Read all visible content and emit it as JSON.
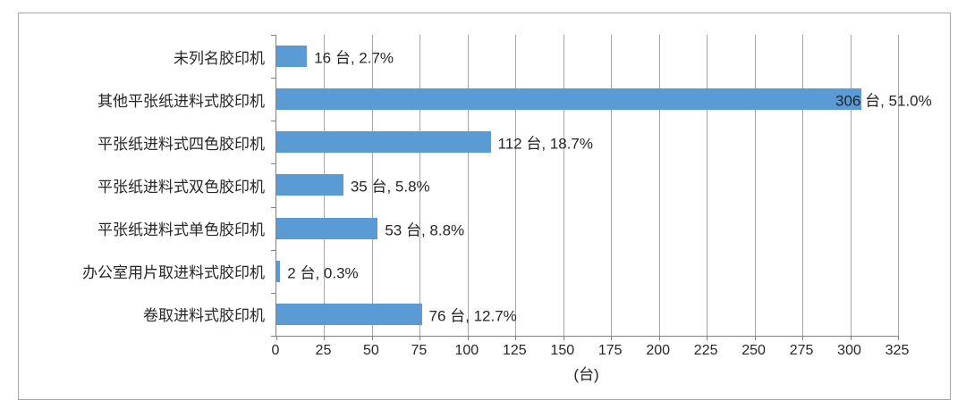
{
  "chart_data": {
    "type": "bar",
    "orientation": "horizontal",
    "title": "",
    "xlabel": "(台)",
    "ylabel": "",
    "xlim": [
      0,
      325
    ],
    "x_ticks": [
      0,
      25,
      50,
      75,
      100,
      125,
      150,
      175,
      200,
      225,
      250,
      275,
      300,
      325
    ],
    "grid": true,
    "legend": "none",
    "categories": [
      "未列名胶印机",
      "其他平张纸进料式胶印机",
      "平张纸进料式四色胶印机",
      "平张纸进料式双色胶印机",
      "平张纸进料式单色胶印机",
      "办公室用片取进料式胶印机",
      "卷取进料式胶印机"
    ],
    "values": [
      16,
      306,
      112,
      35,
      53,
      2,
      76
    ],
    "percentages": [
      "2.7%",
      "51.0%",
      "18.7%",
      "5.8%",
      "8.8%",
      "0.3%",
      "12.7%"
    ],
    "data_labels": [
      "16 台, 2.7%",
      "306 台, 51.0%",
      "112 台, 18.7%",
      "35 台, 5.8%",
      "53 台, 8.8%",
      "2 台, 0.3%",
      "76 台, 12.7%"
    ],
    "unit": "台",
    "colors": {
      "bar": "#5B9BD5",
      "gridline": "#A6A6A6",
      "axis": "#808080",
      "text": "#262626",
      "frame_border": "#A6A6A6",
      "background": "#FFFFFF"
    }
  }
}
